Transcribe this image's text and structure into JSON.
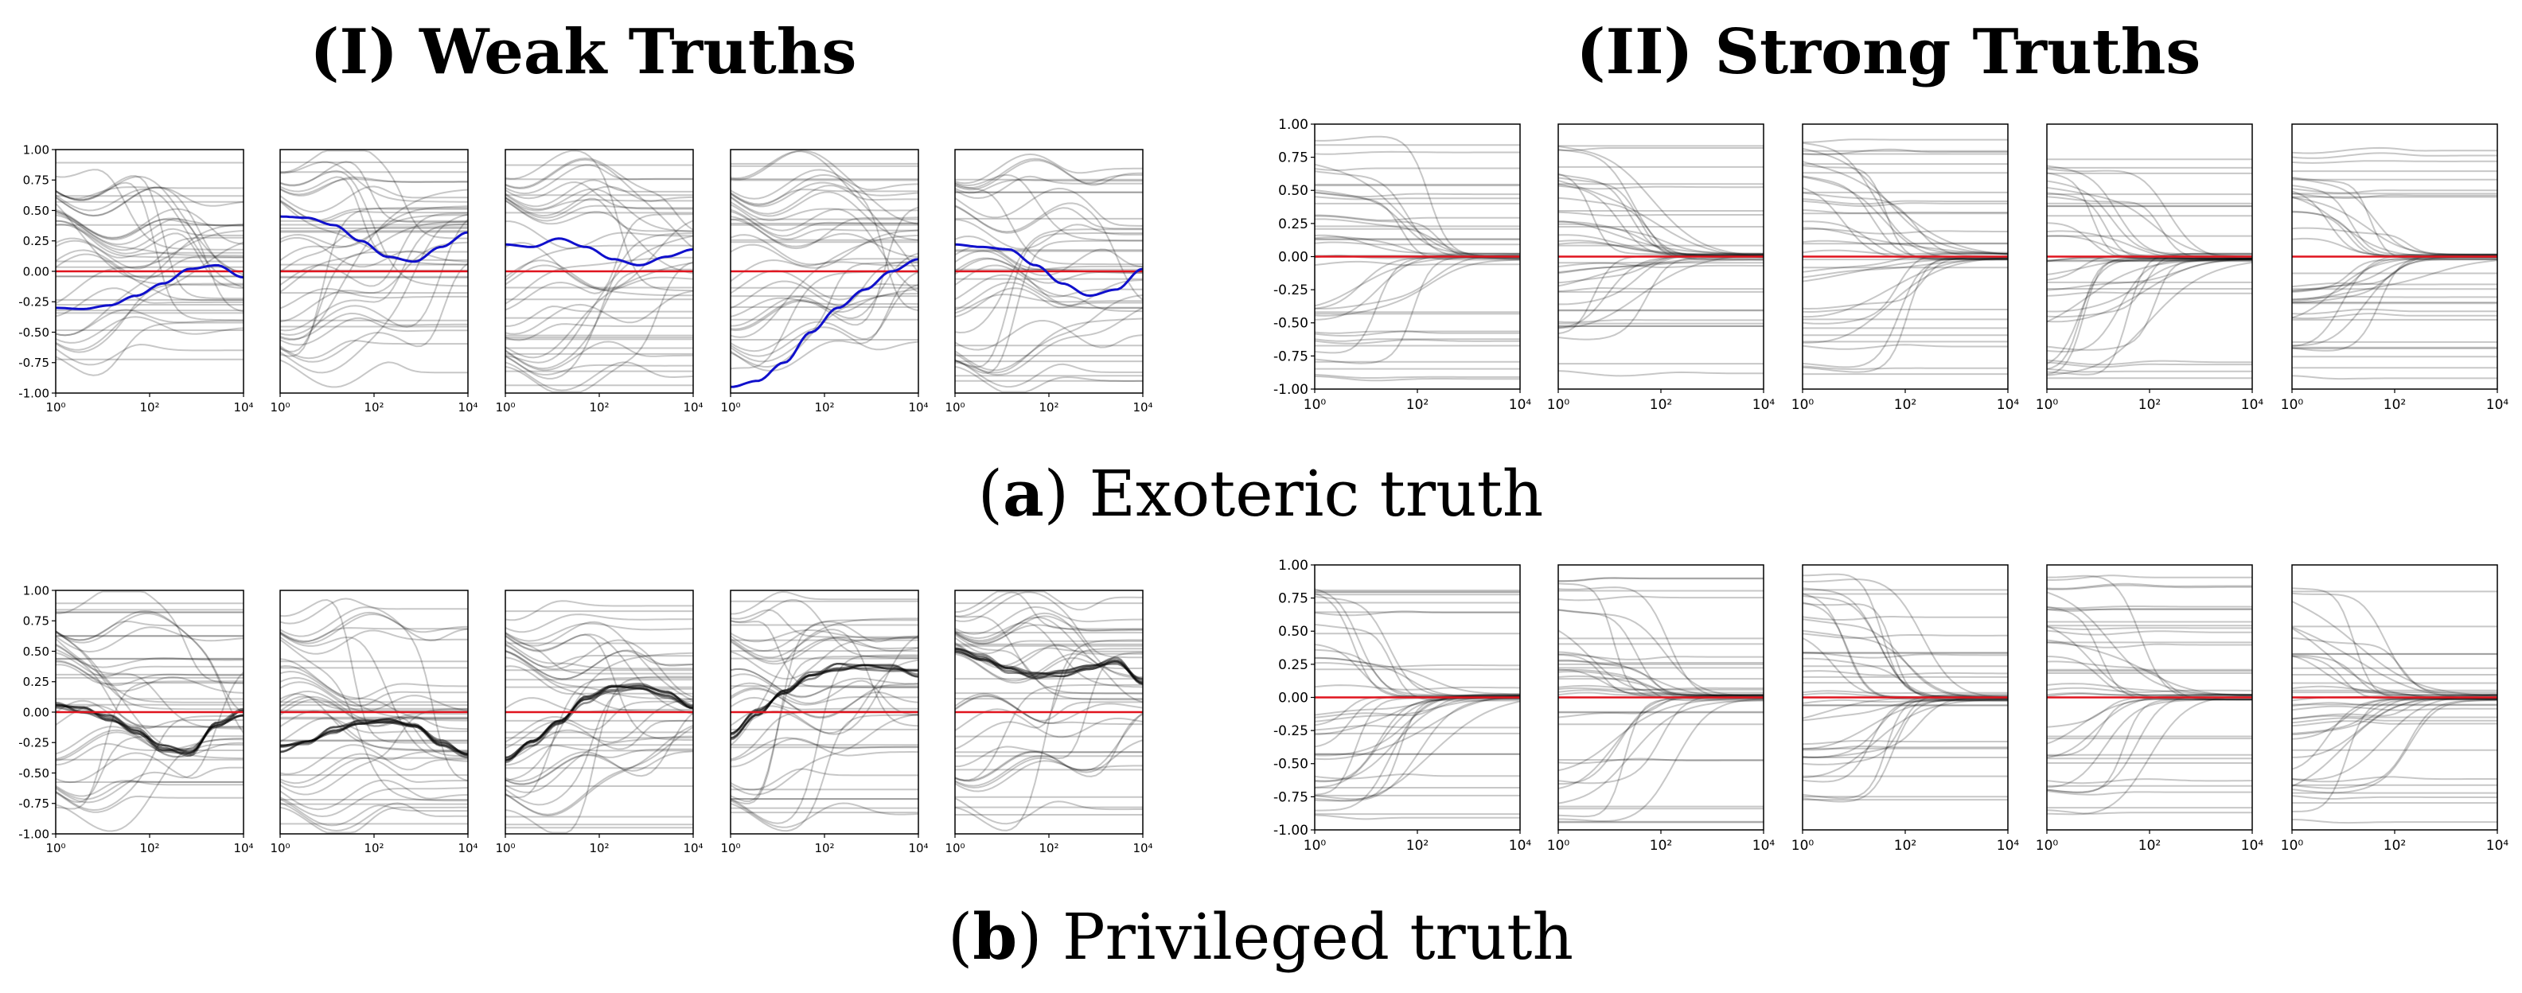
{
  "group_titles": [
    "(I) Weak Truths",
    "(II) Strong Truths"
  ],
  "row_captions": [
    {
      "label": "a",
      "text": " Exoteric truth"
    },
    {
      "label": "b",
      "text": " Privileged truth"
    }
  ],
  "colors": {
    "trajectory": "#000000",
    "zero_line": "#e0141e",
    "highlight": "#1010cc",
    "frame": "#000000"
  },
  "chart_data": {
    "type": "line",
    "description_keys": "rows x groups x panels; each panel plots belief trajectories vs. interaction steps on log x-axis",
    "x_axis": {
      "scale": "log",
      "xlim": [
        1,
        10000
      ],
      "tick_labels": [
        "10⁰",
        "10²",
        "10⁴"
      ],
      "tick_values": [
        1,
        100,
        10000
      ]
    },
    "y_axis": {
      "ylim": [
        -1.0,
        1.0
      ],
      "tick_labels": [
        "1.00",
        "0.75",
        "0.50",
        "0.25",
        "0.00",
        "-0.25",
        "-0.50",
        "-0.75",
        "-1.00"
      ],
      "tick_values": [
        1.0,
        0.75,
        0.5,
        0.25,
        0.0,
        -0.25,
        -0.5,
        -0.75,
        -1.0
      ]
    },
    "reference_line": {
      "y": 0.0,
      "color": "red"
    },
    "rows": [
      {
        "caption": "Exoteric truth",
        "groups": [
          {
            "title": "(I) Weak Truths",
            "panels": [
              {
                "final_mean": -0.05,
                "highlight_path": [
                  -0.3,
                  -0.31,
                  -0.28,
                  -0.2,
                  -0.1,
                  0.02,
                  0.05,
                  -0.05
                ]
              },
              {
                "final_mean": 0.3,
                "highlight_path": [
                  0.45,
                  0.44,
                  0.38,
                  0.25,
                  0.12,
                  0.08,
                  0.2,
                  0.32
                ]
              },
              {
                "final_mean": 0.18,
                "highlight_path": [
                  0.22,
                  0.2,
                  0.27,
                  0.2,
                  0.1,
                  0.05,
                  0.12,
                  0.18
                ]
              },
              {
                "final_mean": 0.1,
                "highlight_path": [
                  -0.95,
                  -0.9,
                  -0.75,
                  -0.5,
                  -0.3,
                  -0.15,
                  0.0,
                  0.1
                ]
              },
              {
                "final_mean": 0.0,
                "highlight_path": [
                  0.22,
                  0.2,
                  0.18,
                  0.05,
                  -0.1,
                  -0.2,
                  -0.15,
                  0.02
                ]
              }
            ]
          },
          {
            "title": "(II) Strong Truths",
            "panels": [
              {
                "final_mean": 0.0
              },
              {
                "final_mean": 0.0
              },
              {
                "final_mean": 0.0
              },
              {
                "final_mean": 0.0
              },
              {
                "final_mean": 0.0
              }
            ]
          }
        ]
      },
      {
        "caption": "Privileged truth",
        "groups": [
          {
            "title": "(I) Weak Truths",
            "panels": [
              {
                "final_mean": 0.0,
                "dark_path": [
                  0.05,
                  0.02,
                  -0.05,
                  -0.15,
                  -0.3,
                  -0.33,
                  -0.1,
                  0.0
                ]
              },
              {
                "final_mean": -0.37,
                "dark_path": [
                  -0.3,
                  -0.25,
                  -0.15,
                  -0.08,
                  -0.06,
                  -0.1,
                  -0.25,
                  -0.37
                ]
              },
              {
                "final_mean": 0.05,
                "dark_path": [
                  -0.4,
                  -0.25,
                  -0.1,
                  0.1,
                  0.2,
                  0.22,
                  0.15,
                  0.05
                ]
              },
              {
                "final_mean": 0.32,
                "dark_path": [
                  -0.2,
                  0.0,
                  0.15,
                  0.3,
                  0.37,
                  0.37,
                  0.36,
                  0.32
                ]
              },
              {
                "final_mean": 0.25,
                "dark_path": [
                  0.5,
                  0.45,
                  0.35,
                  0.3,
                  0.32,
                  0.36,
                  0.42,
                  0.25
                ]
              }
            ]
          },
          {
            "title": "(II) Strong Truths",
            "panels": [
              {
                "final_mean": 0.0
              },
              {
                "final_mean": 0.0
              },
              {
                "final_mean": 0.0
              },
              {
                "final_mean": 0.0
              },
              {
                "final_mean": 0.0
              }
            ]
          }
        ]
      }
    ]
  }
}
